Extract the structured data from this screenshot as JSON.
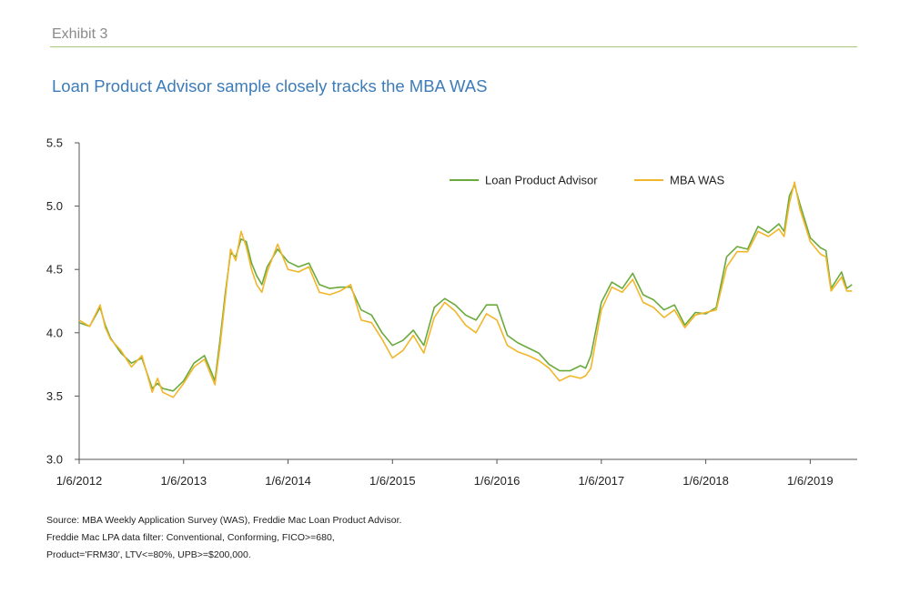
{
  "header": {
    "exhibit": "Exhibit 3",
    "title": "Loan Product Advisor sample closely tracks the MBA WAS"
  },
  "notes": [
    "Source: MBA Weekly Application Survey (WAS), Freddie Mac Loan Product Advisor.",
    "Freddie Mac LPA data filter: Conventional, Conforming, FICO>=680,",
    "Product='FRM30', LTV<=80%, UPB>=$200,000."
  ],
  "chart_data": {
    "type": "line",
    "title": "Loan Product Advisor sample closely tracks the MBA WAS",
    "xlabel": "",
    "ylabel": "",
    "xlim": [
      2012.0,
      2019.45
    ],
    "ylim": [
      3.0,
      5.5
    ],
    "grid": false,
    "legend": "top-right",
    "x_ticks": [
      2012,
      2013,
      2014,
      2015,
      2016,
      2017,
      2018,
      2019
    ],
    "x_tick_labels": [
      "1/6/2012",
      "1/6/2013",
      "1/6/2014",
      "1/6/2015",
      "1/6/2016",
      "1/6/2017",
      "1/6/2018",
      "1/6/2019"
    ],
    "y_ticks": [
      3.0,
      3.5,
      4.0,
      4.5,
      5.0,
      5.5
    ],
    "y_tick_labels": [
      "3.0",
      "3.5",
      "4.0",
      "4.5",
      "5.0",
      "5.5"
    ],
    "x": [
      2012.0,
      2012.1,
      2012.2,
      2012.25,
      2012.3,
      2012.4,
      2012.5,
      2012.6,
      2012.7,
      2012.75,
      2012.8,
      2012.9,
      2013.0,
      2013.1,
      2013.2,
      2013.3,
      2013.35,
      2013.4,
      2013.45,
      2013.5,
      2013.55,
      2013.6,
      2013.65,
      2013.7,
      2013.75,
      2013.8,
      2013.9,
      2014.0,
      2014.1,
      2014.2,
      2014.3,
      2014.4,
      2014.5,
      2014.6,
      2014.7,
      2014.8,
      2014.9,
      2015.0,
      2015.1,
      2015.2,
      2015.3,
      2015.4,
      2015.5,
      2015.6,
      2015.7,
      2015.8,
      2015.9,
      2016.0,
      2016.1,
      2016.2,
      2016.3,
      2016.4,
      2016.5,
      2016.6,
      2016.7,
      2016.8,
      2016.85,
      2016.9,
      2017.0,
      2017.1,
      2017.2,
      2017.3,
      2017.4,
      2017.5,
      2017.6,
      2017.7,
      2017.8,
      2017.9,
      2018.0,
      2018.1,
      2018.2,
      2018.3,
      2018.4,
      2018.5,
      2018.6,
      2018.7,
      2018.75,
      2018.8,
      2018.85,
      2018.9,
      2019.0,
      2019.1,
      2019.15,
      2019.2,
      2019.3,
      2019.35,
      2019.4
    ],
    "series": [
      {
        "name": "Loan Product Advisor",
        "color": "#6aaa3c",
        "values": [
          4.08,
          4.05,
          4.2,
          4.06,
          3.96,
          3.84,
          3.76,
          3.8,
          3.56,
          3.6,
          3.56,
          3.54,
          3.62,
          3.76,
          3.82,
          3.62,
          3.95,
          4.32,
          4.63,
          4.6,
          4.74,
          4.72,
          4.55,
          4.45,
          4.38,
          4.52,
          4.66,
          4.56,
          4.52,
          4.55,
          4.38,
          4.35,
          4.36,
          4.36,
          4.18,
          4.14,
          4.0,
          3.9,
          3.94,
          4.02,
          3.9,
          4.2,
          4.27,
          4.22,
          4.14,
          4.1,
          4.22,
          4.22,
          3.98,
          3.92,
          3.88,
          3.84,
          3.75,
          3.7,
          3.7,
          3.74,
          3.72,
          3.82,
          4.24,
          4.4,
          4.35,
          4.47,
          4.3,
          4.26,
          4.18,
          4.22,
          4.06,
          4.16,
          4.15,
          4.2,
          4.6,
          4.68,
          4.66,
          4.84,
          4.79,
          4.86,
          4.8,
          5.08,
          5.17,
          5.02,
          4.75,
          4.67,
          4.65,
          4.35,
          4.48,
          4.35,
          4.38
        ]
      },
      {
        "name": "MBA WAS",
        "color": "#f2b62a",
        "values": [
          4.1,
          4.05,
          4.22,
          4.04,
          3.95,
          3.86,
          3.73,
          3.82,
          3.53,
          3.64,
          3.53,
          3.49,
          3.6,
          3.73,
          3.79,
          3.59,
          3.9,
          4.28,
          4.66,
          4.57,
          4.8,
          4.68,
          4.5,
          4.38,
          4.32,
          4.48,
          4.7,
          4.5,
          4.48,
          4.52,
          4.32,
          4.3,
          4.33,
          4.38,
          4.1,
          4.08,
          3.95,
          3.8,
          3.86,
          3.98,
          3.84,
          4.12,
          4.24,
          4.17,
          4.06,
          4.0,
          4.15,
          4.1,
          3.9,
          3.85,
          3.82,
          3.78,
          3.72,
          3.62,
          3.66,
          3.64,
          3.66,
          3.72,
          4.18,
          4.36,
          4.32,
          4.42,
          4.24,
          4.2,
          4.12,
          4.18,
          4.04,
          4.14,
          4.16,
          4.18,
          4.52,
          4.64,
          4.64,
          4.8,
          4.76,
          4.82,
          4.76,
          5.02,
          5.19,
          4.98,
          4.72,
          4.62,
          4.6,
          4.33,
          4.44,
          4.33,
          4.33
        ]
      }
    ]
  }
}
